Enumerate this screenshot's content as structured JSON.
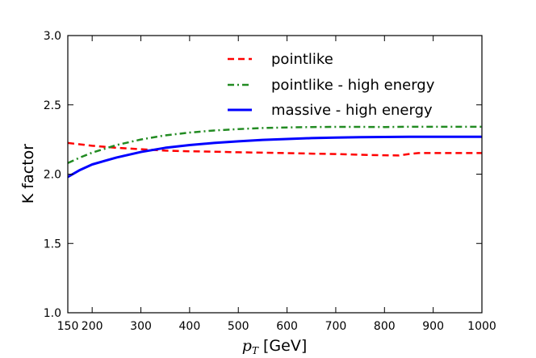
{
  "chart_data": {
    "type": "line",
    "title": "",
    "xlabel": {
      "variable": "p",
      "subscript": "T",
      "unit": " [GeV]"
    },
    "ylabel": "K factor",
    "xlim": [
      150,
      1000
    ],
    "ylim": [
      1.0,
      3.0
    ],
    "xticks": [
      150,
      200,
      300,
      400,
      500,
      600,
      700,
      800,
      900,
      1000
    ],
    "xtick_labels": [
      "150",
      "200",
      "300",
      "400",
      "500",
      "600",
      "700",
      "800",
      "900",
      "1000"
    ],
    "yticks": [
      1.0,
      1.5,
      2.0,
      2.5,
      3.0
    ],
    "ytick_labels": [
      "1.0",
      "1.5",
      "2.0",
      "2.5",
      "3.0"
    ],
    "grid": false,
    "legend_position": "top-right",
    "series": [
      {
        "name": "pointlike",
        "color": "#ff0000",
        "style": "dashed",
        "x": [
          150,
          175,
          200,
          250,
          300,
          350,
          400,
          450,
          500,
          550,
          600,
          650,
          700,
          750,
          800,
          830,
          850,
          870,
          900,
          950,
          1000
        ],
        "y": [
          2.225,
          2.215,
          2.205,
          2.19,
          2.18,
          2.17,
          2.165,
          2.162,
          2.158,
          2.155,
          2.152,
          2.148,
          2.145,
          2.14,
          2.136,
          2.135,
          2.145,
          2.152,
          2.152,
          2.152,
          2.152
        ]
      },
      {
        "name": "pointlike - high energy",
        "color": "#228b22",
        "style": "dashdot",
        "x": [
          150,
          175,
          200,
          250,
          300,
          350,
          400,
          450,
          500,
          550,
          600,
          650,
          700,
          750,
          800,
          850,
          900,
          950,
          1000
        ],
        "y": [
          2.08,
          2.12,
          2.155,
          2.21,
          2.25,
          2.28,
          2.3,
          2.315,
          2.325,
          2.333,
          2.337,
          2.34,
          2.341,
          2.341,
          2.34,
          2.342,
          2.342,
          2.342,
          2.342
        ]
      },
      {
        "name": "massive - high energy",
        "color": "#0000ff",
        "style": "solid",
        "x": [
          150,
          175,
          200,
          250,
          300,
          350,
          400,
          450,
          500,
          550,
          600,
          650,
          700,
          750,
          800,
          850,
          900,
          950,
          1000
        ],
        "y": [
          1.98,
          2.03,
          2.07,
          2.12,
          2.16,
          2.19,
          2.21,
          2.225,
          2.237,
          2.247,
          2.254,
          2.26,
          2.264,
          2.267,
          2.268,
          2.27,
          2.27,
          2.27,
          2.27
        ]
      }
    ]
  }
}
